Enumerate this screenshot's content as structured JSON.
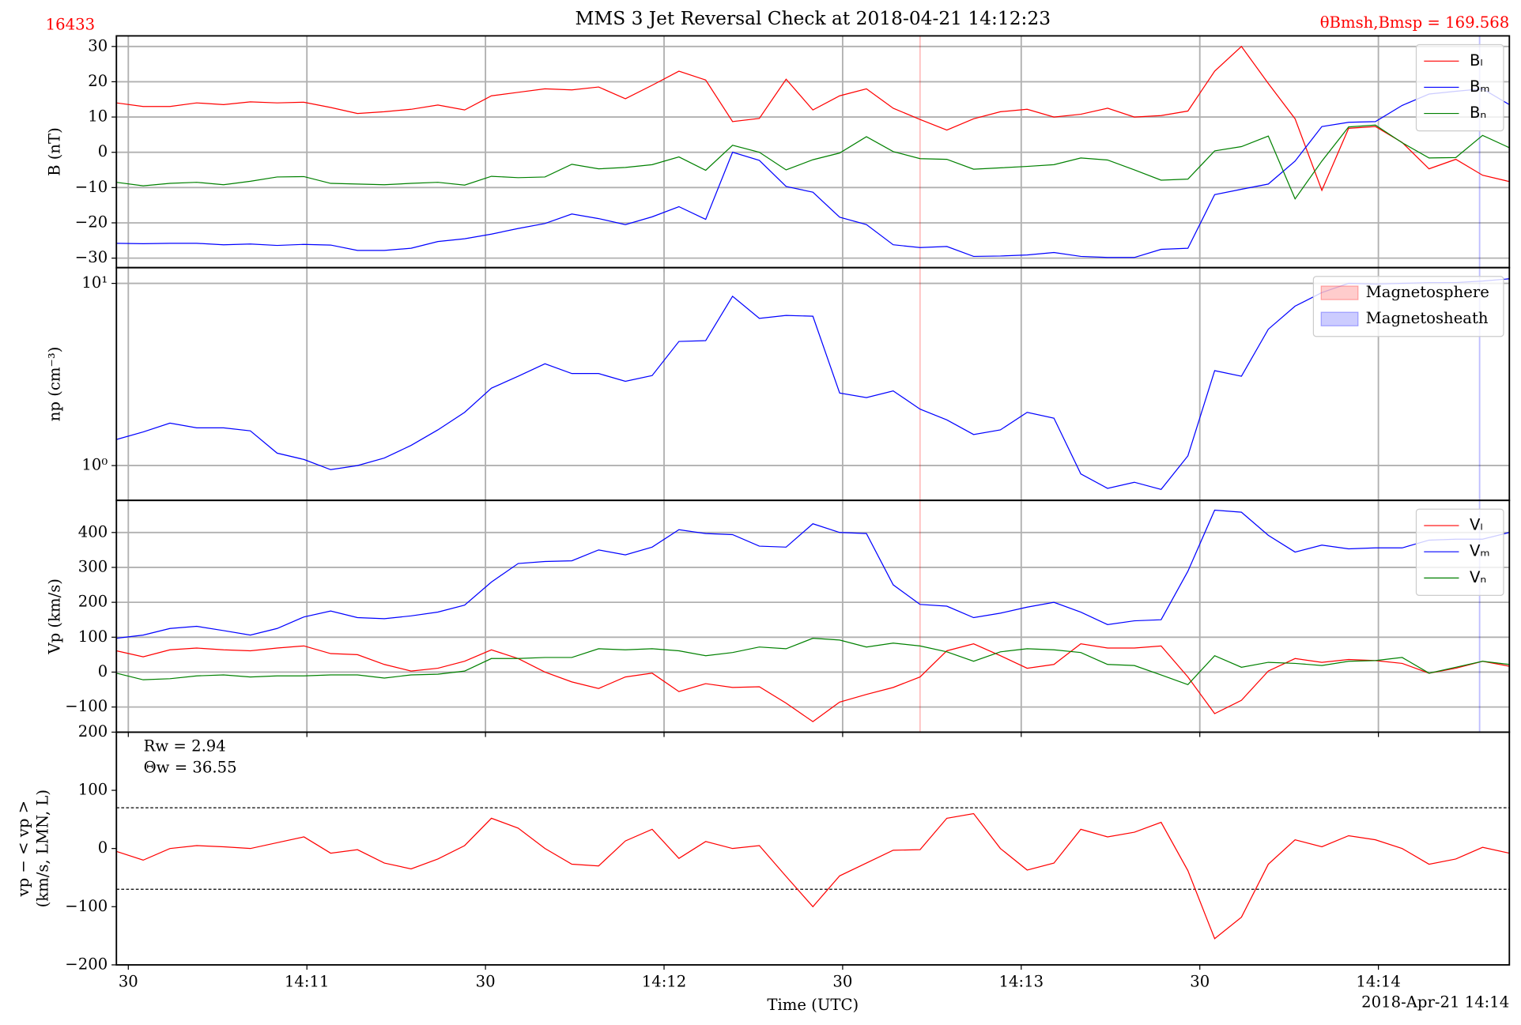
{
  "figure": {
    "title": "MMS 3 Jet Reversal Check at 2018-04-21 14:12:23",
    "id_label": "16433",
    "angle_label": "θBmsh,Bmsp = 169.568",
    "xlabel": "Time (UTC)",
    "date_label": "2018-Apr-21 14:14",
    "xlim": [
      "14:10:28",
      "14:14:22"
    ],
    "xticks": [
      {
        "value": "14:10:30",
        "label": "30"
      },
      {
        "value": "14:11:00",
        "label": "14:11"
      },
      {
        "value": "14:11:30",
        "label": "30"
      },
      {
        "value": "14:12:00",
        "label": "14:12"
      },
      {
        "value": "14:12:30",
        "label": "30"
      },
      {
        "value": "14:13:00",
        "label": "14:13"
      },
      {
        "value": "14:13:30",
        "label": "30"
      },
      {
        "value": "14:14:00",
        "label": "14:14"
      }
    ],
    "x": [
      "14:10:28",
      "14:10:32.5",
      "14:10:37",
      "14:10:41.5",
      "14:10:46",
      "14:10:50.5",
      "14:10:55",
      "14:10:59.5",
      "14:11:04",
      "14:11:08.5",
      "14:11:13",
      "14:11:17.5",
      "14:11:22",
      "14:11:26.5",
      "14:11:31",
      "14:11:35.5",
      "14:11:40",
      "14:11:44.5",
      "14:11:49",
      "14:11:53.5",
      "14:11:58",
      "14:12:02.5",
      "14:12:07",
      "14:12:11.5",
      "14:12:16",
      "14:12:20.5",
      "14:12:25",
      "14:12:29.5",
      "14:12:34",
      "14:12:38.5",
      "14:12:43",
      "14:12:47.5",
      "14:12:52",
      "14:12:56.5",
      "14:13:01",
      "14:13:05.5",
      "14:13:10",
      "14:13:14.5",
      "14:13:19",
      "14:13:23.5",
      "14:13:28",
      "14:13:32.5",
      "14:13:37",
      "14:13:41.5",
      "14:13:46",
      "14:13:50.5",
      "14:13:55",
      "14:13:59.5",
      "14:14:04",
      "14:14:08.5",
      "14:14:13",
      "14:14:17.5",
      "14:14:22"
    ]
  },
  "chart_data": [
    {
      "type": "line",
      "ylabel": "B (nT)",
      "grid": true,
      "legend": "upper right",
      "ylim": [
        -32.7,
        33
      ],
      "yticks": [
        {
          "value": -30,
          "label": "−30"
        },
        {
          "value": -20,
          "label": "−20"
        },
        {
          "value": -10,
          "label": "−10"
        },
        0,
        10,
        20,
        30
      ],
      "series": [
        {
          "name": "Bₗ",
          "color": "#ff0000",
          "values": [
            14,
            13,
            13,
            14,
            13.5,
            14.3,
            14,
            14.2,
            12.7,
            11,
            11.5,
            12.2,
            13.4,
            12,
            16,
            17,
            18,
            17.7,
            18.5,
            15.2,
            19,
            23,
            20.5,
            8.7,
            9.6,
            20.7,
            12,
            16,
            18,
            12.5,
            9.3,
            6.3,
            9.5,
            11.5,
            12.2,
            10,
            10.8,
            12.5,
            10,
            10.4,
            11.7,
            23,
            30,
            19.5,
            9.5,
            -10.8,
            6.8,
            7.3,
            2.8,
            -4.7,
            -2,
            -6.5,
            -8.3
          ]
        },
        {
          "name": "Bₘ",
          "color": "#0000ff",
          "values": [
            -25.8,
            -25.9,
            -25.8,
            -25.8,
            -26.2,
            -26,
            -26.4,
            -26.1,
            -26.3,
            -27.8,
            -27.8,
            -27.2,
            -25.3,
            -24.5,
            -23.2,
            -21.6,
            -20.2,
            -17.5,
            -18.8,
            -20.5,
            -18.3,
            -15.4,
            -19,
            0,
            -2.3,
            -9.7,
            -11.3,
            -18.4,
            -20.5,
            -26.2,
            -27,
            -26.7,
            -29.5,
            -29.4,
            -29.1,
            -28.4,
            -29.5,
            -29.8,
            -29.8,
            -27.5,
            -27.2,
            -12,
            -10.5,
            -9,
            -2.5,
            7.3,
            8.5,
            8.7,
            13.3,
            16.5,
            17.3,
            18,
            13.5
          ]
        },
        {
          "name": "Bₙ",
          "color": "#008000",
          "values": [
            -8.5,
            -9.5,
            -8.8,
            -8.5,
            -9.2,
            -8.2,
            -7,
            -6.9,
            -8.8,
            -9,
            -9.2,
            -8.8,
            -8.5,
            -9.3,
            -6.8,
            -7.2,
            -7,
            -3.4,
            -4.7,
            -4.3,
            -3.5,
            -1.3,
            -5.1,
            2,
            0,
            -5,
            -2.1,
            -0.2,
            4.4,
            0.2,
            -1.8,
            -2,
            -4.8,
            -4.4,
            -4,
            -3.5,
            -1.6,
            -2.2,
            -5,
            -7.9,
            -7.6,
            0.4,
            1.6,
            4.6,
            -13.2,
            -2.5,
            7.2,
            7.7,
            2.7,
            -1.6,
            -1.5,
            4.8,
            1.3
          ]
        }
      ]
    },
    {
      "type": "line",
      "ylabel": "np (cm⁻³)",
      "grid": true,
      "log_y": true,
      "legend": "upper right",
      "ylim": [
        0.644,
        12.2
      ],
      "yticks": [
        {
          "value": 1,
          "label": "10⁰"
        },
        {
          "value": 10,
          "label": "10¹"
        }
      ],
      "series": [
        {
          "name": "np",
          "color": "#0000ff",
          "values": [
            1.39,
            1.53,
            1.71,
            1.61,
            1.61,
            1.55,
            1.17,
            1.08,
            0.95,
            1.0,
            1.1,
            1.29,
            1.57,
            1.96,
            2.66,
            3.09,
            3.62,
            3.2,
            3.2,
            2.9,
            3.12,
            4.8,
            4.85,
            8.5,
            6.43,
            6.67,
            6.6,
            2.5,
            2.36,
            2.57,
            2.04,
            1.78,
            1.48,
            1.57,
            1.96,
            1.82,
            0.9,
            0.75,
            0.81,
            0.74,
            1.13,
            3.32,
            3.09,
            5.6,
            7.5,
            8.9,
            10,
            9.9,
            10,
            10.1,
            10.1,
            10.3,
            10.6
          ]
        }
      ],
      "regions": [
        {
          "name": "Magnetosphere",
          "color": "#ff0000",
          "x": "14:12:43"
        },
        {
          "name": "Magnetosheath",
          "color": "#0000ff",
          "x": "14:14:17"
        }
      ]
    },
    {
      "type": "line",
      "ylabel": "Vp (km/s)",
      "grid": true,
      "legend": "upper right",
      "ylim": [
        -172,
        492
      ],
      "yticks": [
        {
          "value": -100,
          "label": "−100"
        },
        0,
        100,
        200,
        300,
        400
      ],
      "series": [
        {
          "name": "Vₗ",
          "color": "#ff0000",
          "values": [
            61,
            44,
            64,
            69,
            64,
            61,
            69,
            75,
            53,
            50,
            22,
            3,
            11,
            31,
            64,
            39,
            0,
            -28,
            -47,
            -14,
            -3,
            -56,
            -33,
            -44,
            -42,
            -89,
            -142,
            -86,
            -64,
            -44,
            -14,
            61,
            81,
            47,
            11,
            22,
            81,
            69,
            69,
            75,
            -14,
            -119,
            -81,
            3,
            39,
            28,
            36,
            33,
            25,
            -3,
            11,
            31,
            17
          ]
        },
        {
          "name": "Vₘ",
          "color": "#0000ff",
          "values": [
            97,
            106,
            125,
            131,
            119,
            106,
            125,
            158,
            175,
            156,
            153,
            161,
            172,
            192,
            258,
            311,
            317,
            319,
            350,
            336,
            358,
            408,
            397,
            394,
            361,
            358,
            425,
            400,
            397,
            250,
            194,
            189,
            156,
            169,
            186,
            200,
            172,
            136,
            147,
            150,
            289,
            464,
            458,
            392,
            344,
            364,
            353,
            356,
            356,
            378,
            381,
            381,
            400
          ]
        },
        {
          "name": "Vₙ",
          "color": "#008000",
          "values": [
            -3,
            -22,
            -19,
            -11,
            -8,
            -14,
            -11,
            -11,
            -8,
            -8,
            -17,
            -8,
            -6,
            3,
            39,
            39,
            42,
            42,
            67,
            64,
            67,
            61,
            47,
            56,
            72,
            67,
            97,
            92,
            72,
            83,
            75,
            58,
            31,
            58,
            67,
            64,
            56,
            22,
            19,
            -8,
            -36,
            47,
            14,
            28,
            25,
            19,
            31,
            33,
            42,
            -3,
            14,
            31,
            22
          ]
        }
      ]
    },
    {
      "type": "line",
      "ylabel": [
        "vp − < vp >",
        "(km/s, LMN, L)"
      ],
      "grid": false,
      "ylim": [
        -200,
        200
      ],
      "yticks": [
        {
          "value": -200,
          "label": "−200"
        },
        {
          "value": -100,
          "label": "−100"
        },
        0,
        100,
        200
      ],
      "hlines": [
        70,
        -70
      ],
      "annotations": [
        "Rw = 2.94",
        "Θw = 36.55"
      ],
      "series": [
        {
          "name": "vp − < vp >",
          "color": "#ff0000",
          "values": [
            -5,
            -20,
            0,
            5,
            3,
            0,
            10,
            20,
            -8,
            -2,
            -25,
            -35,
            -18,
            5,
            52,
            35,
            0,
            -27,
            -30,
            13,
            33,
            -17,
            12,
            0,
            5,
            -48,
            -100,
            -47,
            -25,
            -3,
            -2,
            52,
            60,
            0,
            -37,
            -25,
            33,
            20,
            28,
            45,
            -38,
            -155,
            -118,
            -27,
            15,
            3,
            22,
            15,
            0,
            -27,
            -18,
            2,
            -8
          ]
        }
      ]
    }
  ]
}
